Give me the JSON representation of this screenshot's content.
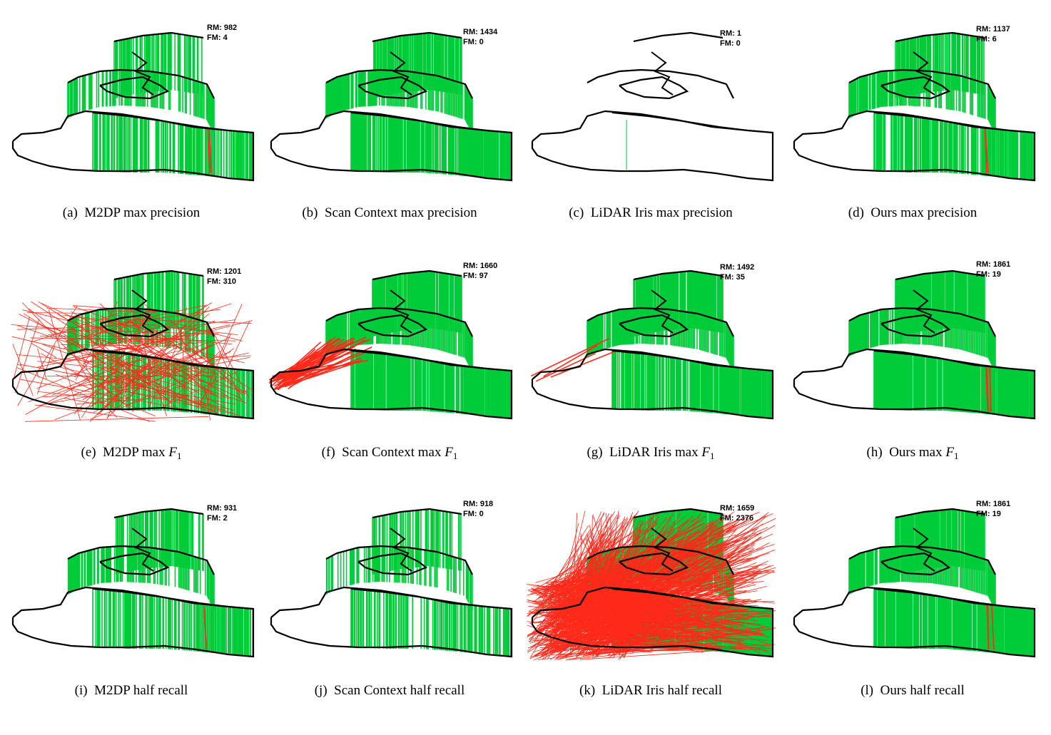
{
  "colors": {
    "match": "#00cc3a",
    "false_match": "#ff2a1a",
    "trajectory": "#000000"
  },
  "panels": [
    {
      "id": "a",
      "label": "(a)",
      "text": "M2DP max precision",
      "rm": "RM: 982",
      "fm": "FM: 4",
      "density": 0.55,
      "false_lines": 2,
      "false_fan": 0
    },
    {
      "id": "b",
      "label": "(b)",
      "text": "Scan Context max precision",
      "rm": "RM: 1434",
      "fm": "FM: 0",
      "density": 0.85,
      "false_lines": 0,
      "false_fan": 0
    },
    {
      "id": "c",
      "label": "(c)",
      "text": "LiDAR Iris max precision",
      "rm": "RM: 1",
      "fm": "FM: 0",
      "density": 0.0,
      "false_lines": 0,
      "false_fan": 0
    },
    {
      "id": "d",
      "label": "(d)",
      "text": "Ours max precision",
      "rm": "RM: 1137",
      "fm": "FM: 6",
      "density": 0.75,
      "false_lines": 2,
      "false_fan": 0
    },
    {
      "id": "e",
      "label": "(e)",
      "text": "M2DP max",
      "f1": "F",
      "sub": "1",
      "rm": "RM: 1201",
      "fm": "FM: 310",
      "density": 0.65,
      "false_lines": 170,
      "false_fan": 0
    },
    {
      "id": "f",
      "label": "(f)",
      "text": "Scan Context max",
      "f1": "F",
      "sub": "1",
      "rm": "RM: 1660",
      "fm": "FM: 97",
      "density": 0.95,
      "false_lines": 45,
      "false_fan": 1
    },
    {
      "id": "g",
      "label": "(g)",
      "text": "LiDAR Iris max",
      "f1": "F",
      "sub": "1",
      "rm": "RM: 1492",
      "fm": "FM: 35",
      "density": 0.9,
      "false_lines": 4,
      "false_fan": 1
    },
    {
      "id": "h",
      "label": "(h)",
      "text": "Ours max",
      "f1": "F",
      "sub": "1",
      "rm": "RM: 1861",
      "fm": "FM: 19",
      "density": 0.95,
      "false_lines": 4,
      "false_fan": 0
    },
    {
      "id": "i",
      "label": "(i)",
      "text": "M2DP half recall",
      "rm": "RM: 931",
      "fm": "FM: 2",
      "density": 0.55,
      "false_lines": 1,
      "false_fan": 0
    },
    {
      "id": "j",
      "label": "(j)",
      "text": "Scan Context half recall",
      "rm": "RM: 918",
      "fm": "FM: 0",
      "density": 0.5,
      "false_lines": 0,
      "false_fan": 0
    },
    {
      "id": "k",
      "label": "(k)",
      "text": "LiDAR Iris half recall",
      "rm": "RM: 1659",
      "fm": "FM: 2376",
      "density": 0.95,
      "false_lines": 900,
      "false_fan": 2
    },
    {
      "id": "l",
      "label": "(l)",
      "text": "Ours half recall",
      "rm": "RM: 1861",
      "fm": "FM: 19",
      "density": 0.95,
      "false_lines": 4,
      "false_fan": 0
    }
  ]
}
